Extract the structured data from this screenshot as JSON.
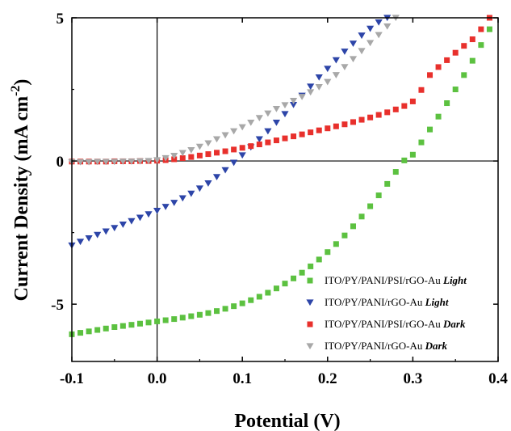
{
  "chart_data": {
    "type": "scatter",
    "xlabel": "Potential (V)",
    "ylabel_main": "Current Density (mA cm",
    "ylabel_sup": "-2",
    "ylabel_close": ")",
    "xlim": [
      -0.1,
      0.4
    ],
    "ylim": [
      -7,
      5
    ],
    "x_ticks": [
      -0.1,
      0.0,
      0.1,
      0.2,
      0.3,
      0.4
    ],
    "x_tick_labels": [
      "-0.1",
      "0.0",
      "0.1",
      "0.2",
      "0.3",
      "0.4"
    ],
    "y_ticks": [
      -5,
      0,
      5
    ],
    "y_tick_labels": [
      "-5",
      "0",
      "5"
    ],
    "grid": false,
    "reference_lines": {
      "x": 0,
      "y": 0
    },
    "legend_position": "bottom-right",
    "series": [
      {
        "name": "ITO/PY/PANI/PSI/rGO-Au",
        "condition": "Light",
        "marker": "square",
        "color": "#5cc140",
        "x": [
          -0.1,
          -0.09,
          -0.08,
          -0.07,
          -0.06,
          -0.05,
          -0.04,
          -0.03,
          -0.02,
          -0.01,
          0.0,
          0.01,
          0.02,
          0.03,
          0.04,
          0.05,
          0.06,
          0.07,
          0.08,
          0.09,
          0.1,
          0.11,
          0.12,
          0.13,
          0.14,
          0.15,
          0.16,
          0.17,
          0.18,
          0.19,
          0.2,
          0.21,
          0.22,
          0.23,
          0.24,
          0.25,
          0.26,
          0.27,
          0.28,
          0.29,
          0.3,
          0.31,
          0.32,
          0.33,
          0.34,
          0.35,
          0.36,
          0.37,
          0.38,
          0.39
        ],
        "y": [
          -6.05,
          -6.0,
          -5.95,
          -5.9,
          -5.85,
          -5.8,
          -5.76,
          -5.72,
          -5.68,
          -5.64,
          -5.6,
          -5.56,
          -5.52,
          -5.47,
          -5.42,
          -5.37,
          -5.31,
          -5.24,
          -5.16,
          -5.07,
          -4.97,
          -4.86,
          -4.74,
          -4.6,
          -4.45,
          -4.28,
          -4.1,
          -3.9,
          -3.68,
          -3.44,
          -3.18,
          -2.9,
          -2.6,
          -2.28,
          -1.94,
          -1.58,
          -1.2,
          -0.8,
          -0.38,
          0.02,
          0.22,
          0.65,
          1.1,
          1.55,
          2.02,
          2.5,
          3.0,
          3.5,
          4.05,
          4.6
        ]
      },
      {
        "name": "ITO/PY/PANI/rGO-Au",
        "condition": "Light",
        "marker": "triangle-down",
        "color": "#2d45a8",
        "x": [
          -0.1,
          -0.09,
          -0.08,
          -0.07,
          -0.06,
          -0.05,
          -0.04,
          -0.03,
          -0.02,
          -0.01,
          0.0,
          0.01,
          0.02,
          0.03,
          0.04,
          0.05,
          0.06,
          0.07,
          0.08,
          0.09,
          0.1,
          0.11,
          0.12,
          0.13,
          0.14,
          0.15,
          0.16,
          0.17,
          0.18,
          0.19,
          0.2,
          0.21,
          0.22,
          0.23,
          0.24,
          0.25,
          0.26,
          0.27
        ],
        "y": [
          -2.95,
          -2.82,
          -2.7,
          -2.58,
          -2.46,
          -2.34,
          -2.22,
          -2.1,
          -1.98,
          -1.86,
          -1.74,
          -1.6,
          -1.46,
          -1.3,
          -1.14,
          -0.96,
          -0.78,
          -0.56,
          -0.32,
          -0.06,
          0.2,
          0.48,
          0.76,
          1.04,
          1.34,
          1.64,
          1.96,
          2.28,
          2.6,
          2.92,
          3.22,
          3.52,
          3.82,
          4.1,
          4.38,
          4.62,
          4.84,
          5.0
        ]
      },
      {
        "name": "ITO/PY/PANI/PSI/rGO-Au",
        "condition": "Dark",
        "marker": "square",
        "color": "#e8302c",
        "x": [
          -0.1,
          -0.09,
          -0.08,
          -0.07,
          -0.06,
          -0.05,
          -0.04,
          -0.03,
          -0.02,
          -0.01,
          0.0,
          0.01,
          0.02,
          0.03,
          0.04,
          0.05,
          0.06,
          0.07,
          0.08,
          0.09,
          0.1,
          0.11,
          0.12,
          0.13,
          0.14,
          0.15,
          0.16,
          0.17,
          0.18,
          0.19,
          0.2,
          0.21,
          0.22,
          0.23,
          0.24,
          0.25,
          0.26,
          0.27,
          0.28,
          0.29,
          0.3,
          0.31,
          0.32,
          0.33,
          0.34,
          0.35,
          0.36,
          0.37,
          0.38,
          0.39
        ],
        "y": [
          -0.02,
          -0.02,
          -0.02,
          -0.02,
          -0.02,
          -0.01,
          -0.01,
          -0.01,
          0.0,
          0.0,
          0.01,
          0.03,
          0.06,
          0.1,
          0.14,
          0.19,
          0.24,
          0.29,
          0.34,
          0.4,
          0.46,
          0.52,
          0.58,
          0.65,
          0.72,
          0.79,
          0.86,
          0.93,
          1.0,
          1.07,
          1.14,
          1.21,
          1.28,
          1.36,
          1.44,
          1.52,
          1.61,
          1.7,
          1.8,
          1.92,
          2.08,
          2.48,
          3.0,
          3.28,
          3.52,
          3.78,
          4.02,
          4.25,
          4.6,
          5.0
        ]
      },
      {
        "name": "ITO/PY/PANI/rGO-Au",
        "condition": "Dark",
        "marker": "triangle-down",
        "color": "#a8a8a8",
        "x": [
          -0.1,
          -0.09,
          -0.08,
          -0.07,
          -0.06,
          -0.05,
          -0.04,
          -0.03,
          -0.02,
          -0.01,
          0.0,
          0.01,
          0.02,
          0.03,
          0.04,
          0.05,
          0.06,
          0.07,
          0.08,
          0.09,
          0.1,
          0.11,
          0.12,
          0.13,
          0.14,
          0.15,
          0.16,
          0.17,
          0.18,
          0.19,
          0.2,
          0.21,
          0.22,
          0.23,
          0.24,
          0.25,
          0.26,
          0.27,
          0.28
        ],
        "y": [
          -0.04,
          -0.04,
          -0.04,
          -0.03,
          -0.03,
          -0.03,
          -0.02,
          -0.02,
          -0.01,
          0.0,
          0.03,
          0.1,
          0.18,
          0.28,
          0.38,
          0.5,
          0.62,
          0.76,
          0.9,
          1.04,
          1.18,
          1.34,
          1.5,
          1.66,
          1.82,
          1.95,
          2.1,
          2.24,
          2.4,
          2.58,
          2.76,
          3.0,
          3.28,
          3.56,
          3.84,
          4.12,
          4.4,
          4.7,
          5.0
        ]
      }
    ]
  }
}
